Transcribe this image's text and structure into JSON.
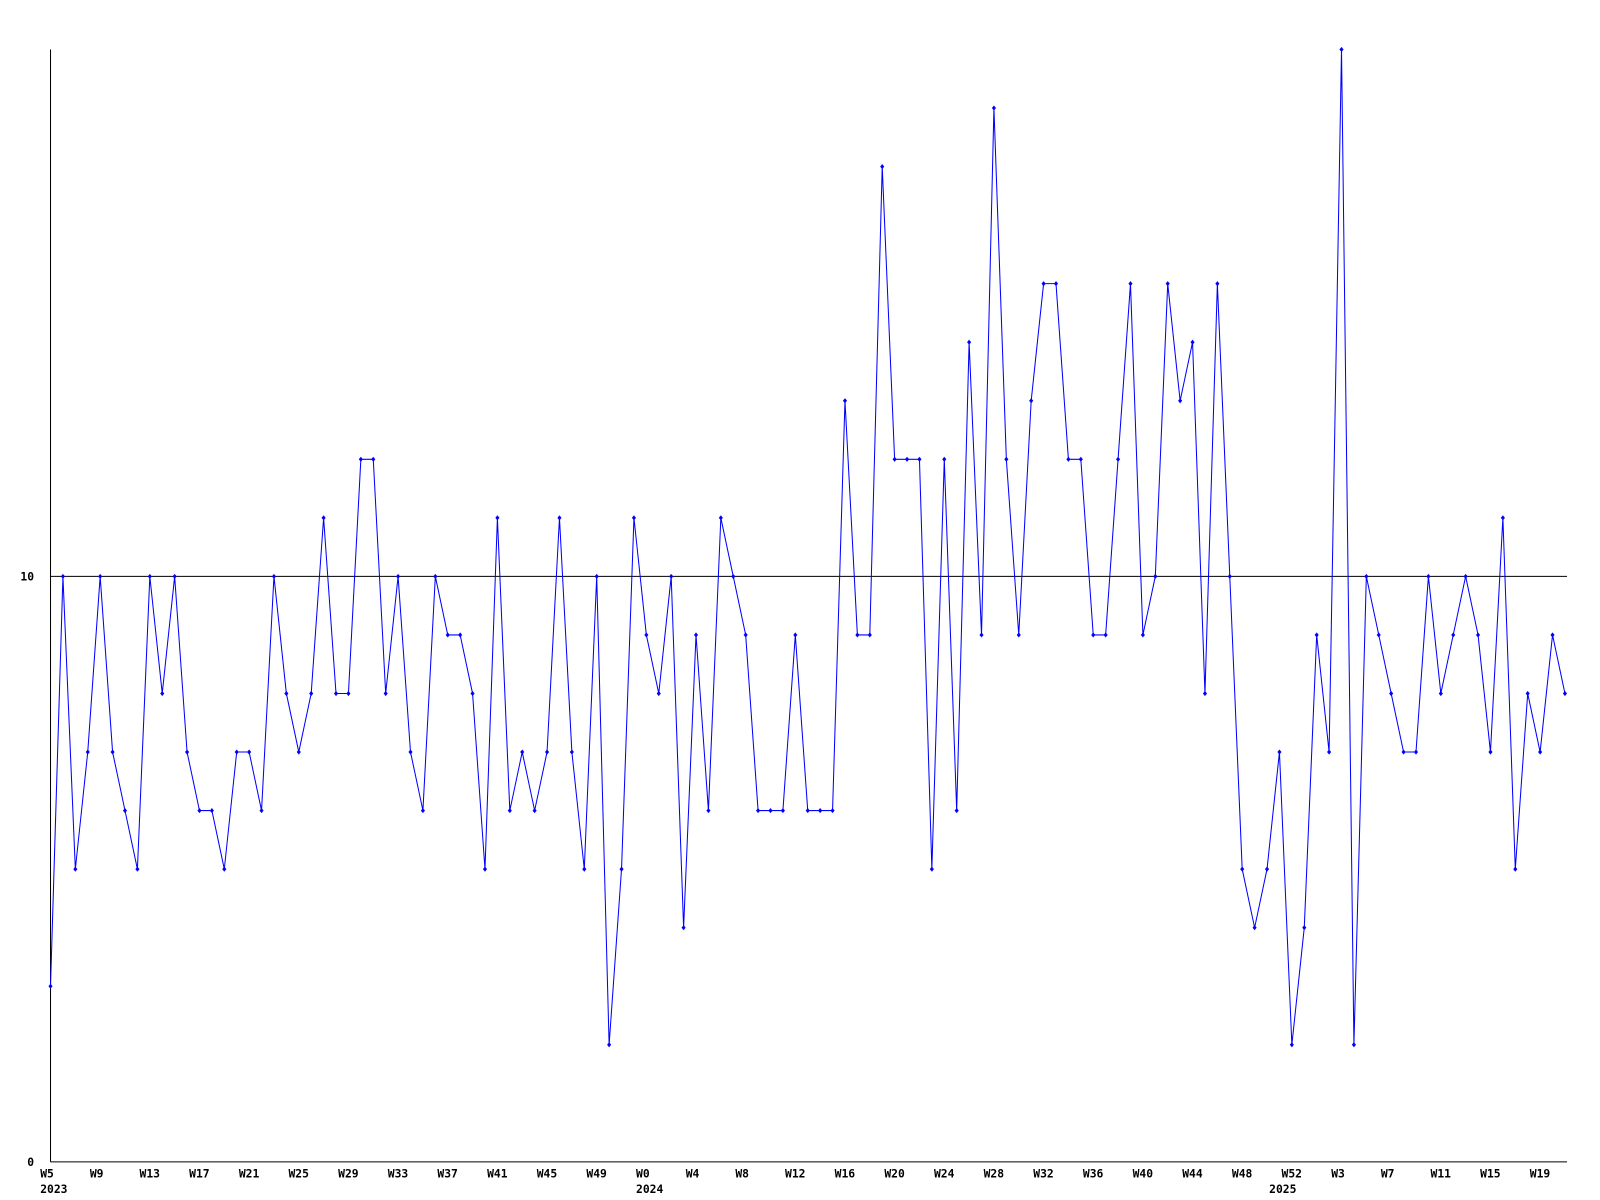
{
  "chart_data": {
    "type": "line",
    "categories": [
      "W5",
      null,
      null,
      null,
      "W9",
      null,
      null,
      null,
      "W13",
      null,
      null,
      null,
      "W17",
      null,
      null,
      null,
      "W21",
      null,
      null,
      null,
      "W25",
      null,
      null,
      null,
      "W29",
      null,
      null,
      null,
      "W33",
      null,
      null,
      null,
      "W37",
      null,
      null,
      null,
      "W41",
      null,
      null,
      null,
      "W45",
      null,
      null,
      null,
      "W49",
      null,
      null,
      null,
      "W0",
      null,
      null,
      null,
      "W4",
      null,
      null,
      null,
      "W8",
      null,
      null,
      null,
      "W12",
      null,
      null,
      null,
      "W16",
      null,
      null,
      null,
      "W20",
      null,
      null,
      null,
      "W24",
      null,
      null,
      null,
      "W28",
      null,
      null,
      null,
      "W32",
      null,
      null,
      null,
      "W36",
      null,
      null,
      null,
      "W40",
      null,
      null,
      null,
      "W44",
      null,
      null,
      null,
      "W48",
      null,
      null,
      null,
      "W52",
      null,
      null,
      null,
      "W3",
      null,
      null,
      null,
      "W7",
      null,
      null,
      null,
      "W11",
      null,
      null,
      null,
      "W15",
      null,
      null,
      null,
      "W19",
      null,
      null
    ],
    "secondary_categories": [
      "2023",
      null,
      null,
      null,
      null,
      null,
      null,
      null,
      null,
      null,
      null,
      null,
      null,
      null,
      null,
      null,
      null,
      null,
      null,
      null,
      null,
      null,
      null,
      null,
      null,
      null,
      null,
      null,
      null,
      null,
      null,
      null,
      null,
      null,
      null,
      null,
      null,
      null,
      null,
      null,
      null,
      null,
      null,
      null,
      null,
      null,
      null,
      null,
      "2024",
      null,
      null,
      null,
      null,
      null,
      null,
      null,
      null,
      null,
      null,
      null,
      null,
      null,
      null,
      null,
      null,
      null,
      null,
      null,
      null,
      null,
      null,
      null,
      null,
      null,
      null,
      null,
      null,
      null,
      null,
      null,
      null,
      null,
      null,
      null,
      null,
      null,
      null,
      null,
      null,
      null,
      null,
      null,
      null,
      null,
      null,
      null,
      null,
      null,
      null,
      "2025",
      null,
      null,
      null,
      null,
      null,
      null,
      null,
      null,
      null,
      null,
      null,
      null,
      null,
      null,
      null,
      null,
      null,
      null,
      null,
      null,
      null
    ],
    "series": [
      {
        "color": "#0000ff",
        "values": [
          3,
          10,
          5,
          7,
          10,
          7,
          6,
          5,
          10,
          8,
          10,
          7,
          6,
          6,
          5,
          7,
          7,
          6,
          10,
          8,
          7,
          8,
          11,
          8,
          8,
          12,
          12,
          8,
          10,
          7,
          6,
          10,
          9,
          9,
          8,
          5,
          11,
          6,
          7,
          6,
          7,
          11,
          7,
          5,
          10,
          2,
          5,
          11,
          9,
          8,
          10,
          4,
          9,
          6,
          11,
          10,
          9,
          6,
          6,
          6,
          9,
          6,
          6,
          6,
          13,
          9,
          9,
          17,
          12,
          12,
          12,
          5,
          12,
          6,
          14,
          9,
          18,
          12,
          9,
          13,
          15,
          15,
          12,
          12,
          9,
          9,
          12,
          15,
          9,
          10,
          15,
          13,
          14,
          8,
          15,
          10,
          5,
          4,
          5,
          7,
          2,
          4,
          9,
          7,
          19,
          2,
          10,
          9,
          8,
          7,
          7,
          10,
          8,
          9,
          10,
          9,
          7,
          11,
          5,
          8,
          7,
          9,
          8
        ]
      }
    ],
    "ylim": [
      0,
      19
    ],
    "yticks": [
      0,
      10
    ],
    "grid": true
  }
}
